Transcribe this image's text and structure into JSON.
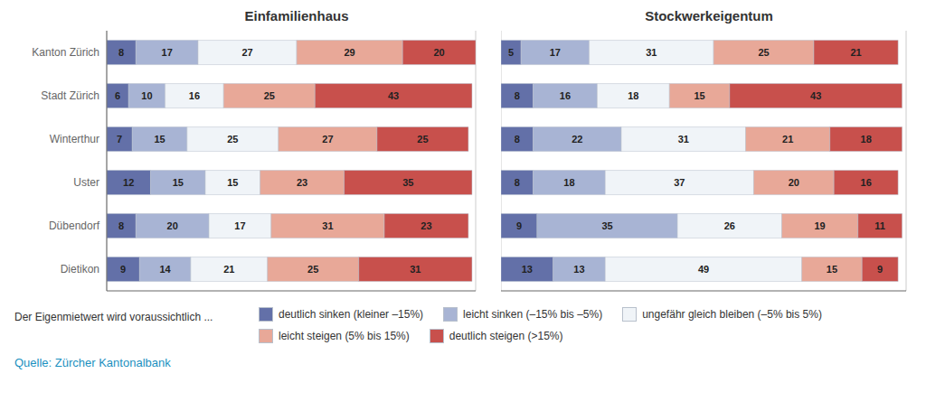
{
  "chart_data": [
    {
      "type": "bar",
      "orientation": "horizontal",
      "stacked": true,
      "data_labels": true,
      "grid": true,
      "tick_labels": "y",
      "legend": "bottom",
      "title": "Einfamilienhaus",
      "categories": [
        "Kanton Zürich",
        "Stadt Zürich",
        "Winterthur",
        "Uster",
        "Dübendorf",
        "Dietikon"
      ],
      "series": [
        {
          "name": "deutlich sinken (kleiner –15%)",
          "color": "#6370a8",
          "values": [
            8,
            6,
            7,
            12,
            8,
            9
          ]
        },
        {
          "name": "leicht sinken (–15% bis –5%)",
          "color": "#a8b4d4",
          "values": [
            17,
            10,
            15,
            15,
            20,
            14
          ]
        },
        {
          "name": "ungefähr gleich bleiben (–5% bis 5%)",
          "color": "#f0f4f8",
          "values": [
            27,
            16,
            25,
            15,
            17,
            21
          ]
        },
        {
          "name": "leicht steigen (5% bis 15%)",
          "color": "#e8a898",
          "values": [
            29,
            25,
            27,
            23,
            31,
            25
          ]
        },
        {
          "name": "deutlich steigen (>15%)",
          "color": "#c8504c",
          "values": [
            20,
            43,
            25,
            35,
            23,
            31
          ]
        }
      ],
      "xlim": [
        0,
        101
      ],
      "xticks": [
        0,
        10,
        20,
        30,
        40,
        50,
        60,
        70,
        80,
        90,
        100
      ],
      "annotations": [
        "Der Eigenmietwert wird voraussichtlich ...",
        "Quelle: Zürcher Kantonalbank"
      ]
    },
    {
      "type": "bar",
      "orientation": "horizontal",
      "stacked": true,
      "data_labels": true,
      "grid": true,
      "tick_labels": false,
      "title": "Stockwerkeigentum",
      "categories": [
        "Kanton Zürich",
        "Stadt Zürich",
        "Winterthur",
        "Uster",
        "Dübendorf",
        "Dietikon"
      ],
      "series": [
        {
          "name": "deutlich sinken (kleiner –15%)",
          "color": "#6370a8",
          "values": [
            5,
            8,
            8,
            8,
            9,
            13
          ]
        },
        {
          "name": "leicht sinken (–15% bis –5%)",
          "color": "#a8b4d4",
          "values": [
            17,
            16,
            22,
            18,
            35,
            13
          ]
        },
        {
          "name": "ungefähr gleich bleiben (–5% bis 5%)",
          "color": "#f0f4f8",
          "values": [
            31,
            18,
            31,
            37,
            26,
            49
          ]
        },
        {
          "name": "leicht steigen (5% bis 15%)",
          "color": "#e8a898",
          "values": [
            25,
            15,
            21,
            20,
            19,
            15
          ]
        },
        {
          "name": "deutlich steigen (>15%)",
          "color": "#c8504c",
          "values": [
            21,
            43,
            18,
            16,
            11,
            9
          ]
        }
      ],
      "xlim": [
        0,
        101
      ],
      "xticks": [
        0,
        10,
        20,
        30,
        40,
        50,
        60,
        70,
        80,
        90,
        100
      ]
    }
  ]
}
